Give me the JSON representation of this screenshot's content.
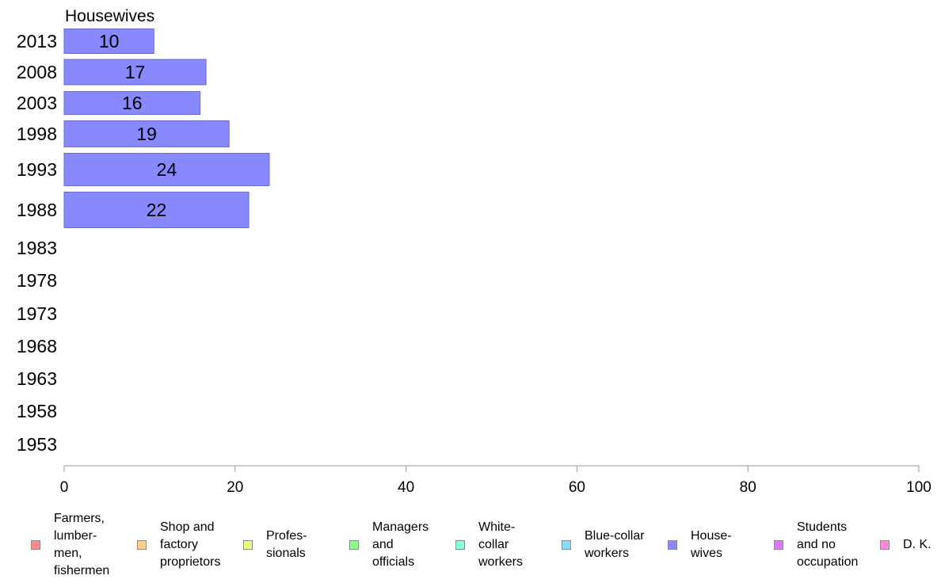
{
  "chart_data": {
    "type": "bar",
    "orientation": "horizontal",
    "title": "Housewives",
    "categories": [
      "2013",
      "2008",
      "2003",
      "1998",
      "1993",
      "1988",
      "1983",
      "1978",
      "1973",
      "1968",
      "1963",
      "1958",
      "1953"
    ],
    "series": [
      {
        "name": "House-\nwives",
        "color": "#8888ff",
        "values": [
          10.5,
          16.6,
          15.9,
          19.3,
          24.0,
          21.6,
          null,
          null,
          null,
          null,
          null,
          null,
          null
        ]
      }
    ],
    "data_labels": [
      "10",
      "17",
      "16",
      "19",
      "24",
      "22",
      "",
      "",
      "",
      "",
      "",
      "",
      ""
    ],
    "x_ticks": [
      "0",
      "20",
      "40",
      "60",
      "80",
      "100"
    ],
    "xlim": [
      0,
      100
    ],
    "grid": false,
    "legend_position": "bottom",
    "legend": [
      {
        "label": "Farmers,\nlumber-\nmen,\nfishermen",
        "color": "#ff8888"
      },
      {
        "label": "Shop and\nfactory\nproprietors",
        "color": "#ffd080"
      },
      {
        "label": "Profes-\nsionals",
        "color": "#e8ff88"
      },
      {
        "label": "Managers\nand\nofficials",
        "color": "#88ff88"
      },
      {
        "label": "White-\ncollar\nworkers",
        "color": "#88ffdd"
      },
      {
        "label": "Blue-collar\nworkers",
        "color": "#88ddff"
      },
      {
        "label": "House-\nwives",
        "color": "#8888ff"
      },
      {
        "label": "Students\nand no\noccupation",
        "color": "#dd77ff"
      },
      {
        "label": "D. K.",
        "color": "#ff88dd"
      }
    ]
  }
}
